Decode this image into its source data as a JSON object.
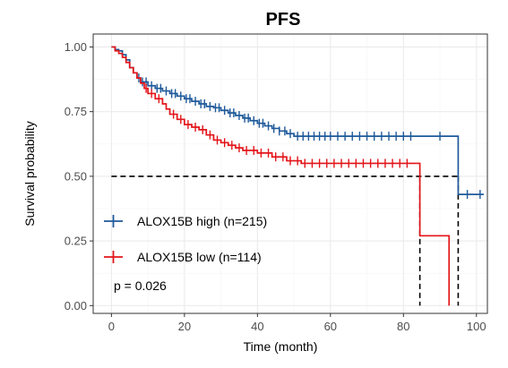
{
  "chart_data": {
    "type": "line",
    "title": "PFS",
    "xlabel": "Time (month)",
    "ylabel": "Survival probability",
    "xlim": [
      -5,
      103
    ],
    "ylim": [
      -0.03,
      1.05
    ],
    "x_ticks": [
      0,
      20,
      40,
      60,
      80,
      100
    ],
    "x_tick_labels": [
      "0",
      "20",
      "40",
      "60",
      "80",
      "100"
    ],
    "y_ticks": [
      0,
      0.25,
      0.5,
      0.75,
      1
    ],
    "y_tick_labels": [
      "0.00",
      "0.25",
      "0.50",
      "0.75",
      "1.00"
    ],
    "grid": true,
    "legend_position": "bottom-left inside plot",
    "p_value_text": "p = 0.026",
    "median_line": {
      "y": 0.5,
      "style": "dashed",
      "color": "#000000",
      "x_drops": [
        84.5,
        95
      ]
    },
    "series": [
      {
        "name": "ALOX15B high (n=215)",
        "color": "#1f5a9a",
        "steps": [
          [
            0,
            1.0
          ],
          [
            1,
            0.99
          ],
          [
            2,
            0.985
          ],
          [
            3,
            0.97
          ],
          [
            4,
            0.95
          ],
          [
            5,
            0.92
          ],
          [
            6,
            0.9
          ],
          [
            7,
            0.88
          ],
          [
            8,
            0.865
          ],
          [
            10,
            0.85
          ],
          [
            12,
            0.84
          ],
          [
            14,
            0.83
          ],
          [
            16,
            0.82
          ],
          [
            18,
            0.81
          ],
          [
            20,
            0.8
          ],
          [
            22,
            0.79
          ],
          [
            24,
            0.78
          ],
          [
            26,
            0.77
          ],
          [
            28,
            0.765
          ],
          [
            30,
            0.755
          ],
          [
            32,
            0.745
          ],
          [
            34,
            0.735
          ],
          [
            36,
            0.725
          ],
          [
            38,
            0.715
          ],
          [
            40,
            0.705
          ],
          [
            42,
            0.695
          ],
          [
            44,
            0.685
          ],
          [
            46,
            0.675
          ],
          [
            48,
            0.665
          ],
          [
            50,
            0.655
          ],
          [
            95,
            0.43
          ],
          [
            102,
            0.43
          ]
        ],
        "censor_times": [
          7.5,
          8.5,
          9.5,
          11,
          12.5,
          13.5,
          15,
          16.5,
          17.5,
          19,
          20.5,
          21.5,
          23,
          24.5,
          25.5,
          27,
          28.5,
          29.5,
          31,
          32.5,
          33.5,
          35,
          36.5,
          37.5,
          39,
          40.5,
          41.5,
          43,
          44.5,
          46,
          47.5,
          49,
          51,
          52.5,
          54,
          55.5,
          57,
          58.5,
          60,
          62,
          64,
          66,
          68,
          70,
          72,
          74,
          76,
          78,
          80,
          82,
          90,
          97.5,
          101
        ]
      },
      {
        "name": "ALOX15B low (n=114)",
        "color": "#e3151a",
        "steps": [
          [
            0,
            1.0
          ],
          [
            1,
            0.985
          ],
          [
            2,
            0.975
          ],
          [
            3,
            0.96
          ],
          [
            4,
            0.94
          ],
          [
            5,
            0.92
          ],
          [
            6,
            0.9
          ],
          [
            7,
            0.88
          ],
          [
            8,
            0.86
          ],
          [
            9,
            0.84
          ],
          [
            10,
            0.82
          ],
          [
            12,
            0.8
          ],
          [
            14,
            0.78
          ],
          [
            15,
            0.76
          ],
          [
            16,
            0.74
          ],
          [
            18,
            0.72
          ],
          [
            20,
            0.7
          ],
          [
            22,
            0.69
          ],
          [
            24,
            0.68
          ],
          [
            26,
            0.66
          ],
          [
            28,
            0.64
          ],
          [
            30,
            0.63
          ],
          [
            32,
            0.62
          ],
          [
            34,
            0.61
          ],
          [
            36,
            0.6
          ],
          [
            40,
            0.59
          ],
          [
            44,
            0.575
          ],
          [
            48,
            0.56
          ],
          [
            52,
            0.55
          ],
          [
            84.5,
            0.27
          ],
          [
            92.5,
            0.0
          ]
        ],
        "end_x": 92.5,
        "censor_times": [
          9.5,
          11,
          13,
          17,
          19,
          21,
          23,
          25,
          27,
          29,
          31,
          33,
          35,
          37,
          39,
          41,
          43,
          45,
          47,
          49,
          51,
          53,
          55,
          57,
          59,
          61,
          63,
          65,
          67,
          69,
          71,
          73,
          75,
          77,
          79,
          81
        ]
      }
    ]
  }
}
